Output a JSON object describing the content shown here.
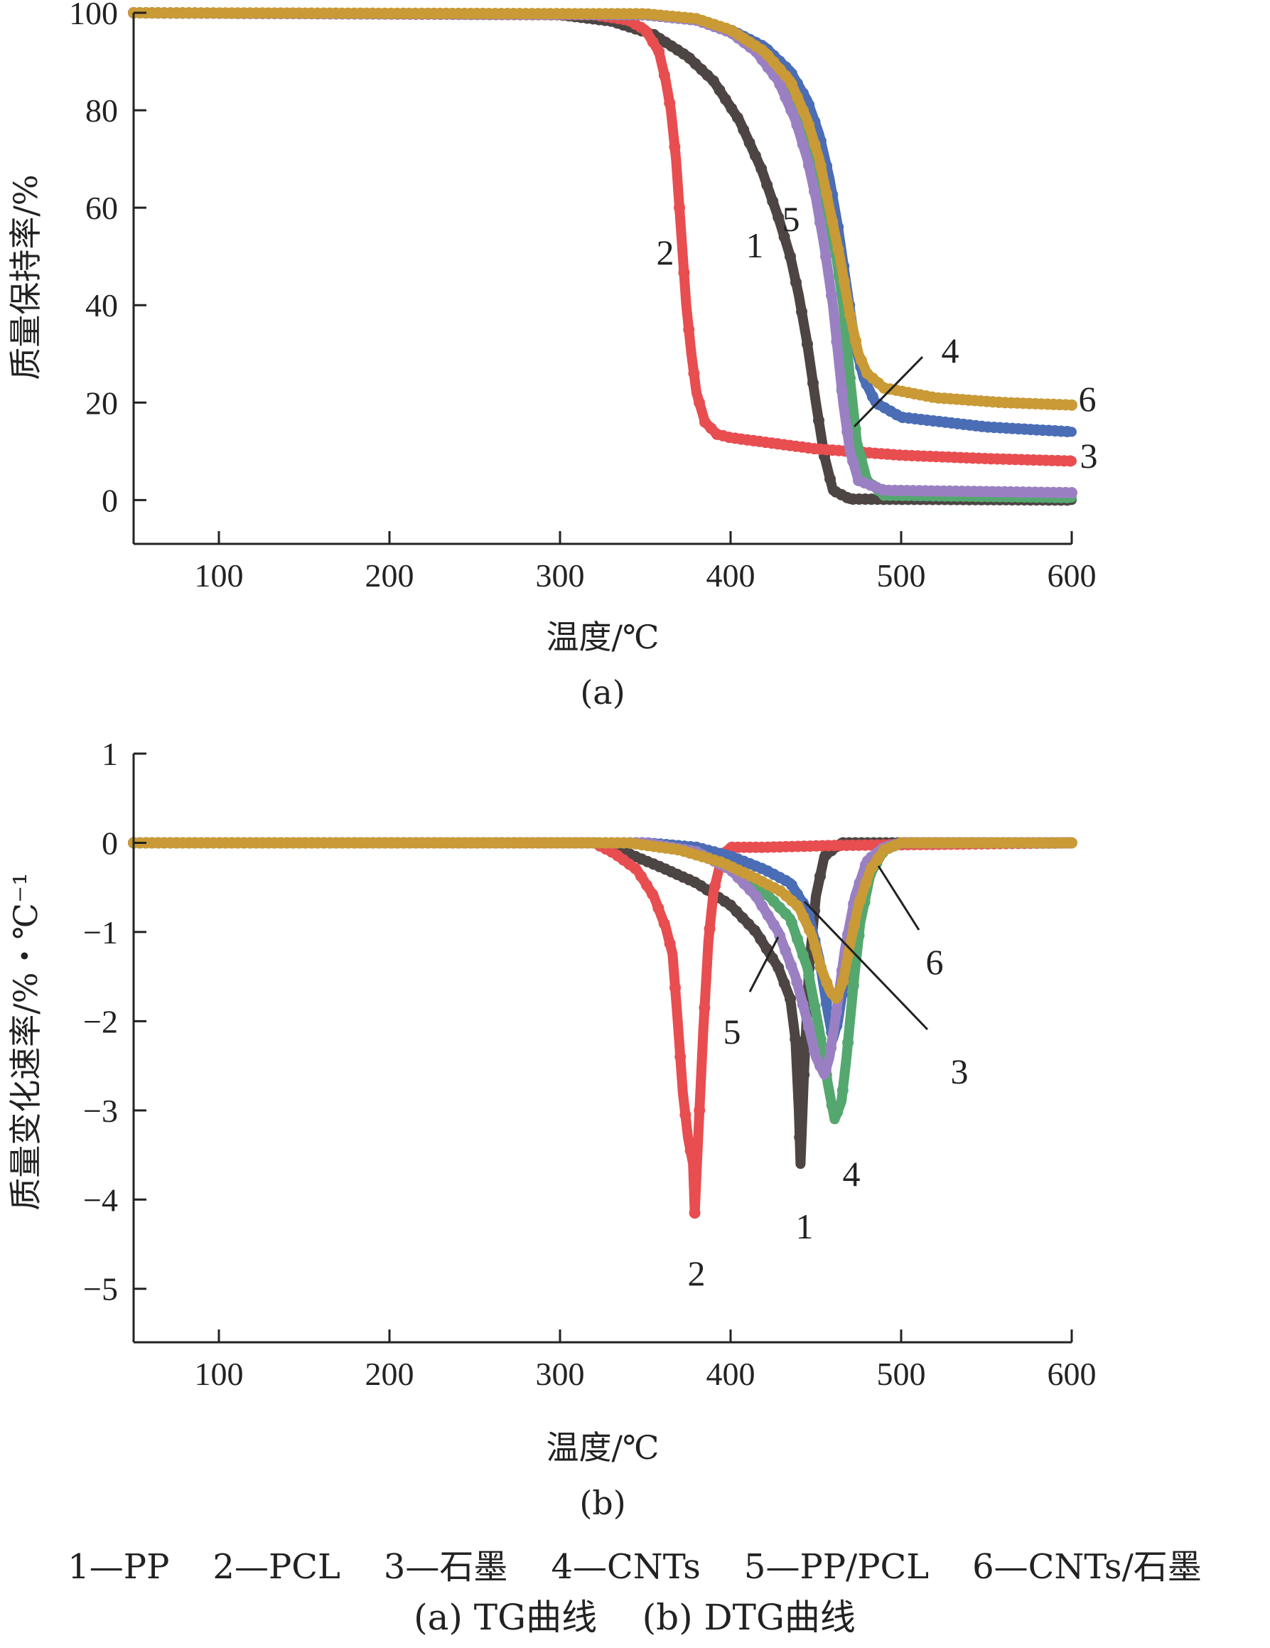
{
  "chart_data": [
    {
      "type": "line",
      "xlabel": "温度/℃",
      "ylabel": "质量保持率/%",
      "sublabel": "(a)",
      "xlim": [
        50,
        600
      ],
      "ylim": [
        -9,
        100
      ],
      "xticks": [
        "100",
        "200",
        "300",
        "400",
        "500",
        "600"
      ],
      "yticks": [
        "100",
        "80",
        "60",
        "40",
        "20",
        "0"
      ],
      "series": [
        {
          "name": "1",
          "color": "#4d4543",
          "points": [
            [
              50,
              100
            ],
            [
              300,
              99.6
            ],
            [
              330,
              98.3
            ],
            [
              355,
              95.5
            ],
            [
              375,
              91
            ],
            [
              390,
              86
            ],
            [
              405,
              78
            ],
            [
              418,
              68
            ],
            [
              428,
              58
            ],
            [
              435,
              50
            ],
            [
              440,
              42
            ],
            [
              445,
              32
            ],
            [
              450,
              20
            ],
            [
              455,
              9
            ],
            [
              460,
              2
            ],
            [
              470,
              0.2
            ],
            [
              600,
              0
            ]
          ]
        },
        {
          "name": "2",
          "color": "#e84d50",
          "points": [
            [
              50,
              100
            ],
            [
              320,
              99.6
            ],
            [
              340,
              98.5
            ],
            [
              350,
              96.5
            ],
            [
              358,
              92
            ],
            [
              362,
              86
            ],
            [
              365,
              80
            ],
            [
              368,
              70
            ],
            [
              370,
              60
            ],
            [
              372,
              50
            ],
            [
              374,
              40
            ],
            [
              377,
              30
            ],
            [
              380,
              22
            ],
            [
              385,
              16
            ],
            [
              392,
              13.5
            ],
            [
              400,
              12.8
            ],
            [
              450,
              10.5
            ],
            [
              500,
              9.2
            ],
            [
              550,
              8.5
            ],
            [
              600,
              8
            ]
          ]
        },
        {
          "name": "3",
          "color": "#4a6db5",
          "points": [
            [
              50,
              100
            ],
            [
              350,
              99.6
            ],
            [
              380,
              98.5
            ],
            [
              400,
              96.5
            ],
            [
              420,
              93
            ],
            [
              435,
              88
            ],
            [
              445,
              82
            ],
            [
              452,
              75
            ],
            [
              458,
              66
            ],
            [
              463,
              56
            ],
            [
              468,
              44
            ],
            [
              473,
              32
            ],
            [
              478,
              25
            ],
            [
              485,
              20
            ],
            [
              500,
              17
            ],
            [
              550,
              15
            ],
            [
              600,
              14
            ]
          ]
        },
        {
          "name": "4",
          "color": "#54a86f",
          "points": [
            [
              50,
              100
            ],
            [
              350,
              99.6
            ],
            [
              380,
              98.5
            ],
            [
              400,
              96.5
            ],
            [
              415,
              93
            ],
            [
              428,
              88
            ],
            [
              440,
              80
            ],
            [
              448,
              72
            ],
            [
              455,
              62
            ],
            [
              462,
              50
            ],
            [
              466,
              40
            ],
            [
              470,
              25
            ],
            [
              474,
              12
            ],
            [
              480,
              4
            ],
            [
              490,
              1
            ],
            [
              600,
              0.5
            ]
          ]
        },
        {
          "name": "5",
          "color": "#9a80c3",
          "points": [
            [
              50,
              100
            ],
            [
              350,
              99.6
            ],
            [
              380,
              98.5
            ],
            [
              400,
              96
            ],
            [
              415,
              92
            ],
            [
              428,
              86
            ],
            [
              438,
              78
            ],
            [
              445,
              70
            ],
            [
              450,
              62
            ],
            [
              455,
              52
            ],
            [
              460,
              40
            ],
            [
              463,
              30
            ],
            [
              466,
              20
            ],
            [
              470,
              10
            ],
            [
              475,
              4
            ],
            [
              490,
              2
            ],
            [
              600,
              1.5
            ]
          ]
        },
        {
          "name": "6",
          "color": "#c99a35",
          "points": [
            [
              50,
              100
            ],
            [
              350,
              99.8
            ],
            [
              380,
              98.8
            ],
            [
              400,
              96.5
            ],
            [
              420,
              92
            ],
            [
              435,
              86
            ],
            [
              445,
              78
            ],
            [
              452,
              70
            ],
            [
              458,
              60
            ],
            [
              464,
              50
            ],
            [
              470,
              38
            ],
            [
              475,
              30
            ],
            [
              480,
              26
            ],
            [
              490,
              23
            ],
            [
              520,
              21
            ],
            [
              560,
              20
            ],
            [
              600,
              19.5
            ]
          ]
        }
      ],
      "annotations": [
        "2",
        "1",
        "5",
        "4",
        "6",
        "3"
      ]
    },
    {
      "type": "line",
      "xlabel": "温度/℃",
      "ylabel": "质量变化速率/%・℃⁻¹",
      "sublabel": "(b)",
      "xlim": [
        50,
        600
      ],
      "ylim": [
        -5.6,
        1
      ],
      "xticks": [
        "100",
        "200",
        "300",
        "400",
        "500",
        "600"
      ],
      "yticks": [
        "1",
        "0",
        "-1",
        "-2",
        "-3",
        "-4",
        "-5"
      ],
      "series": [
        {
          "name": "1",
          "color": "#4d4543",
          "points": [
            [
              50,
              0
            ],
            [
              320,
              0
            ],
            [
              340,
              -0.12
            ],
            [
              360,
              -0.28
            ],
            [
              380,
              -0.45
            ],
            [
              400,
              -0.7
            ],
            [
              415,
              -1
            ],
            [
              428,
              -1.4
            ],
            [
              435,
              -1.75
            ],
            [
              438,
              -2.2
            ],
            [
              440,
              -3
            ],
            [
              441,
              -3.6
            ],
            [
              443,
              -2.6
            ],
            [
              446,
              -1.4
            ],
            [
              450,
              -0.6
            ],
            [
              455,
              -0.15
            ],
            [
              465,
              0
            ],
            [
              600,
              0
            ]
          ]
        },
        {
          "name": "2",
          "color": "#e84d50",
          "points": [
            [
              50,
              0
            ],
            [
              320,
              0
            ],
            [
              332,
              -0.12
            ],
            [
              345,
              -0.3
            ],
            [
              355,
              -0.6
            ],
            [
              362,
              -0.95
            ],
            [
              366,
              -1.25
            ],
            [
              369,
              -2
            ],
            [
              372,
              -2.8
            ],
            [
              375,
              -3.3
            ],
            [
              378,
              -3.6
            ],
            [
              379,
              -4.15
            ],
            [
              381,
              -3.3
            ],
            [
              384,
              -2.1
            ],
            [
              387,
              -1.1
            ],
            [
              390,
              -0.55
            ],
            [
              395,
              -0.15
            ],
            [
              400,
              -0.05
            ],
            [
              420,
              -0.05
            ],
            [
              460,
              -0.03
            ],
            [
              600,
              0
            ]
          ]
        },
        {
          "name": "3",
          "color": "#4a6db5",
          "points": [
            [
              50,
              0
            ],
            [
              350,
              0
            ],
            [
              380,
              -0.05
            ],
            [
              400,
              -0.15
            ],
            [
              420,
              -0.3
            ],
            [
              435,
              -0.45
            ],
            [
              445,
              -0.75
            ],
            [
              452,
              -1.3
            ],
            [
              457,
              -1.9
            ],
            [
              460,
              -2.2
            ],
            [
              463,
              -2.0
            ],
            [
              467,
              -1.5
            ],
            [
              472,
              -0.9
            ],
            [
              480,
              -0.35
            ],
            [
              490,
              -0.08
            ],
            [
              500,
              0
            ],
            [
              600,
              0
            ]
          ]
        },
        {
          "name": "4",
          "color": "#54a86f",
          "points": [
            [
              50,
              0
            ],
            [
              350,
              0
            ],
            [
              380,
              -0.1
            ],
            [
              400,
              -0.3
            ],
            [
              420,
              -0.55
            ],
            [
              435,
              -0.85
            ],
            [
              445,
              -1.4
            ],
            [
              452,
              -2.1
            ],
            [
              457,
              -2.7
            ],
            [
              461,
              -3.1
            ],
            [
              465,
              -2.9
            ],
            [
              468,
              -2.4
            ],
            [
              472,
              -1.6
            ],
            [
              476,
              -0.9
            ],
            [
              482,
              -0.35
            ],
            [
              490,
              -0.08
            ],
            [
              500,
              0
            ],
            [
              600,
              0
            ]
          ]
        },
        {
          "name": "5",
          "color": "#9a80c3",
          "points": [
            [
              50,
              0
            ],
            [
              350,
              0
            ],
            [
              380,
              -0.1
            ],
            [
              400,
              -0.3
            ],
            [
              415,
              -0.6
            ],
            [
              428,
              -1.0
            ],
            [
              438,
              -1.5
            ],
            [
              445,
              -2.0
            ],
            [
              450,
              -2.4
            ],
            [
              455,
              -2.6
            ],
            [
              458,
              -2.4
            ],
            [
              462,
              -1.9
            ],
            [
              467,
              -1.2
            ],
            [
              473,
              -0.6
            ],
            [
              480,
              -0.2
            ],
            [
              490,
              -0.05
            ],
            [
              500,
              0
            ],
            [
              600,
              0
            ]
          ]
        },
        {
          "name": "6",
          "color": "#c99a35",
          "points": [
            [
              50,
              0
            ],
            [
              340,
              0
            ],
            [
              370,
              -0.08
            ],
            [
              395,
              -0.22
            ],
            [
              415,
              -0.4
            ],
            [
              430,
              -0.55
            ],
            [
              440,
              -0.72
            ],
            [
              448,
              -1.05
            ],
            [
              453,
              -1.4
            ],
            [
              458,
              -1.65
            ],
            [
              462,
              -1.75
            ],
            [
              466,
              -1.55
            ],
            [
              470,
              -1.15
            ],
            [
              475,
              -0.7
            ],
            [
              482,
              -0.3
            ],
            [
              490,
              -0.08
            ],
            [
              500,
              0
            ],
            [
              600,
              0
            ]
          ]
        }
      ],
      "annotations": [
        "5",
        "6",
        "3",
        "4",
        "1",
        "2"
      ]
    }
  ],
  "legend_line": "1—PP    2—PCL    3—石墨    4—CNTs    5—PP/PCL    6—CNTs/石墨",
  "caption": "(a) TG曲线    (b) DTG曲线"
}
